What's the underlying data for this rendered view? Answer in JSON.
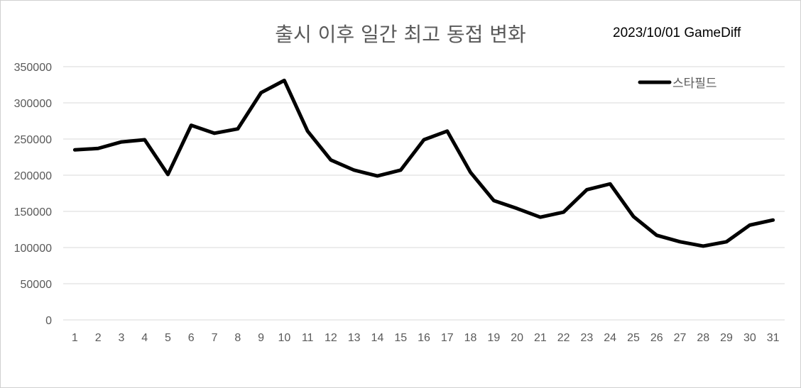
{
  "chart_data": {
    "type": "line",
    "title": "출시 이후 일간 최고 동접 변화",
    "annotation": "2023/10/01 GameDiff",
    "xlabel": "",
    "ylabel": "",
    "ylim": [
      0,
      350000
    ],
    "yticks": [
      "350000",
      "300000",
      "250000",
      "200000",
      "150000",
      "100000",
      "50000",
      "0"
    ],
    "categories": [
      "1",
      "2",
      "3",
      "4",
      "5",
      "6",
      "7",
      "8",
      "9",
      "10",
      "11",
      "12",
      "13",
      "14",
      "15",
      "16",
      "17",
      "18",
      "19",
      "20",
      "21",
      "22",
      "23",
      "24",
      "25",
      "26",
      "27",
      "28",
      "29",
      "30",
      "31"
    ],
    "grid": true,
    "legend_position": "top-right",
    "series": [
      {
        "name": "스타필드",
        "color": "#000000",
        "values": [
          235000,
          237000,
          246000,
          249000,
          201000,
          269000,
          258000,
          264000,
          314000,
          331000,
          261000,
          221000,
          207000,
          199000,
          207000,
          249000,
          261000,
          204000,
          165000,
          154000,
          142000,
          149000,
          180000,
          188000,
          143000,
          117000,
          108000,
          102000,
          108000,
          131000,
          138000
        ]
      }
    ]
  }
}
